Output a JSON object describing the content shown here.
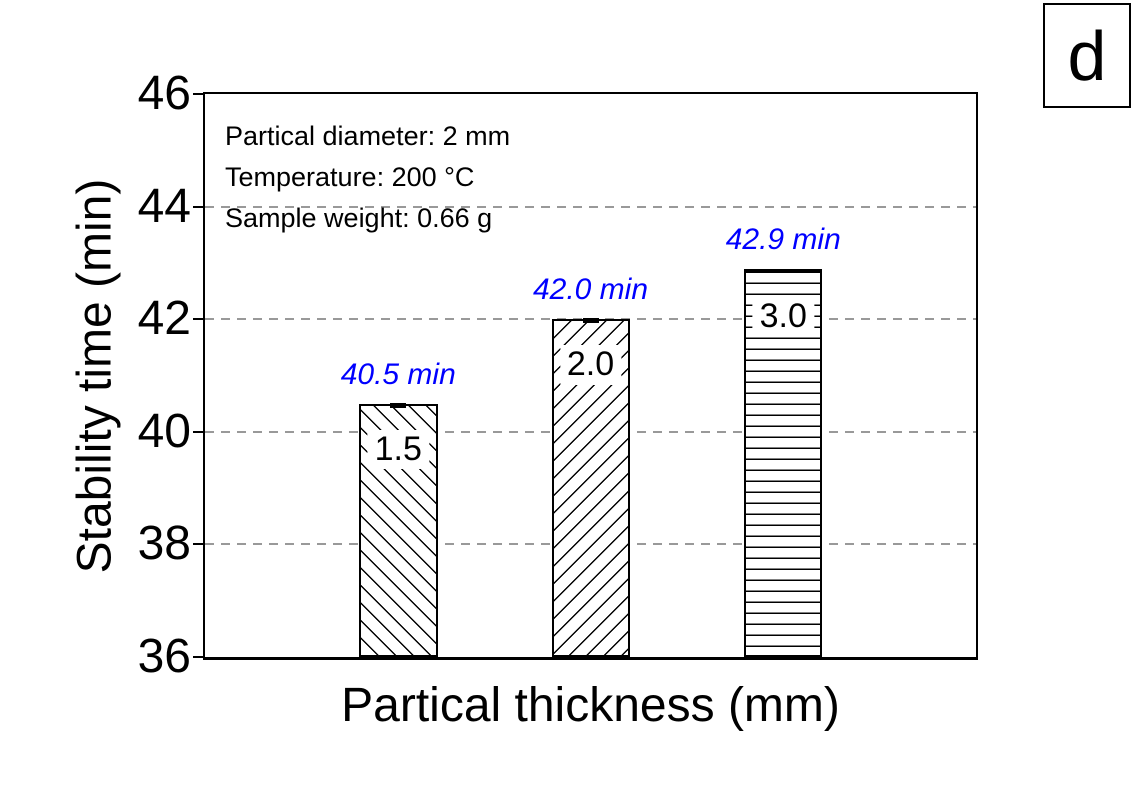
{
  "panel": {
    "label": "d"
  },
  "chart_data": {
    "type": "bar",
    "title": "",
    "xlabel": "Partical thickness (mm)",
    "ylabel": "Stability time (min)",
    "ylim": [
      36,
      46
    ],
    "yticks": [
      36,
      38,
      40,
      42,
      44,
      46
    ],
    "ytick_labels": [
      "36",
      "38",
      "40",
      "42",
      "44",
      "46"
    ],
    "gridlines_y": [
      38,
      40,
      42,
      44
    ],
    "grid_style": "dashed-horizontal",
    "legend": "none",
    "categories": [
      "1.5",
      "2.0",
      "3.0"
    ],
    "values": [
      40.5,
      42.0,
      42.9
    ],
    "bars": [
      {
        "category": "1.5",
        "value": 40.5,
        "value_label": "40.5 min",
        "pattern": "diagonal-down"
      },
      {
        "category": "2.0",
        "value": 42.0,
        "value_label": "42.0 min",
        "pattern": "diagonal-up"
      },
      {
        "category": "3.0",
        "value": 42.9,
        "value_label": "42.9 min",
        "pattern": "horizontal"
      }
    ],
    "annotations": [
      "Partical diameter: 2 mm",
      "Temperature: 200 °C",
      "Sample weight: 0.66 g"
    ],
    "colors": {
      "value_label": "#0000ff",
      "gridline": "#999999",
      "bar_fill": "#ffffff",
      "bar_border": "#000000",
      "text": "#000000"
    }
  }
}
